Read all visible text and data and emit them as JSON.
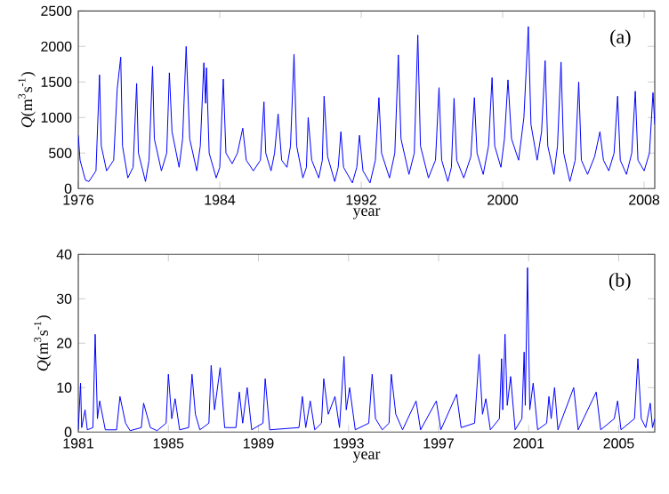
{
  "chart_data": [
    {
      "type": "line",
      "xlabel": "year",
      "ylabel": "*Q*(m$^{3}$s$^{-1}$)",
      "annotations": [
        "(a)"
      ],
      "color": "#0000ff",
      "marker": "none",
      "xlim": [
        1976,
        2008.6
      ],
      "xticks": [
        1976,
        1984,
        1992,
        2000,
        2008
      ],
      "ylim": [
        0,
        2500
      ],
      "yticks": [
        0,
        500,
        1000,
        1500,
        2000,
        2500
      ],
      "x": [
        1976.0,
        1976.1,
        1976.4,
        1976.6,
        1977.0,
        1977.2,
        1977.3,
        1977.6,
        1978.0,
        1978.2,
        1978.4,
        1978.5,
        1978.8,
        1979.1,
        1979.3,
        1979.4,
        1979.8,
        1980.0,
        1980.2,
        1980.3,
        1980.7,
        1981.0,
        1981.15,
        1981.3,
        1981.7,
        1981.9,
        1982.1,
        1982.3,
        1982.7,
        1982.9,
        1983.1,
        1983.2,
        1983.25,
        1983.4,
        1983.8,
        1984.0,
        1984.2,
        1984.35,
        1984.7,
        1985.0,
        1985.3,
        1985.5,
        1985.9,
        1986.3,
        1986.5,
        1986.6,
        1986.9,
        1987.1,
        1987.3,
        1987.5,
        1987.8,
        1988.0,
        1988.2,
        1988.35,
        1988.7,
        1988.9,
        1989.0,
        1989.2,
        1989.6,
        1989.8,
        1989.9,
        1990.1,
        1990.5,
        1990.7,
        1990.85,
        1991.0,
        1991.5,
        1991.75,
        1991.9,
        1992.1,
        1992.5,
        1992.8,
        1993.0,
        1993.15,
        1993.6,
        1993.9,
        1994.1,
        1994.25,
        1994.7,
        1995.0,
        1995.2,
        1995.35,
        1995.8,
        1996.2,
        1996.4,
        1996.55,
        1996.9,
        1997.1,
        1997.25,
        1997.4,
        1997.8,
        1998.2,
        1998.4,
        1998.55,
        1998.9,
        1999.2,
        1999.4,
        1999.55,
        1999.9,
        2000.1,
        2000.3,
        2000.5,
        2000.9,
        2001.2,
        2001.45,
        2001.6,
        2001.95,
        2002.2,
        2002.4,
        2002.55,
        2002.9,
        2003.1,
        2003.3,
        2003.45,
        2003.8,
        2004.1,
        2004.3,
        2004.45,
        2004.8,
        2005.2,
        2005.5,
        2005.7,
        2006.0,
        2006.3,
        2006.5,
        2006.65,
        2007.0,
        2007.3,
        2007.5,
        2007.65,
        2008.0,
        2008.3,
        2008.5,
        2008.6
      ],
      "values": [
        750,
        400,
        120,
        100,
        250,
        1600,
        600,
        250,
        400,
        1400,
        1850,
        600,
        150,
        300,
        1480,
        500,
        100,
        400,
        1720,
        700,
        250,
        500,
        1630,
        800,
        300,
        700,
        2000,
        700,
        250,
        600,
        1770,
        1200,
        1700,
        500,
        150,
        300,
        1540,
        500,
        350,
        500,
        850,
        400,
        250,
        400,
        1220,
        500,
        250,
        500,
        1050,
        400,
        300,
        600,
        1890,
        600,
        150,
        300,
        1000,
        400,
        150,
        400,
        1300,
        450,
        100,
        300,
        800,
        300,
        80,
        300,
        750,
        250,
        80,
        400,
        1280,
        500,
        150,
        500,
        1880,
        700,
        200,
        500,
        2160,
        600,
        150,
        400,
        1420,
        400,
        100,
        300,
        1270,
        400,
        150,
        450,
        1280,
        500,
        200,
        600,
        1560,
        600,
        300,
        700,
        1530,
        700,
        400,
        1000,
        2280,
        900,
        400,
        800,
        1800,
        600,
        200,
        600,
        1780,
        500,
        100,
        400,
        1500,
        400,
        200,
        450,
        800,
        400,
        250,
        500,
        1300,
        400,
        200,
        500,
        1370,
        400,
        250,
        500,
        1350,
        900
      ]
    },
    {
      "type": "line",
      "xlabel": "year",
      "ylabel": "*Q*(m$^{3}$s$^{-1}$)",
      "annotations": [
        "(b)"
      ],
      "color": "#0000ff",
      "marker": "none",
      "xlim": [
        1981,
        2006.6
      ],
      "xticks": [
        1981,
        1985,
        1989,
        1993,
        1997,
        2001,
        2005
      ],
      "ylim": [
        0,
        40
      ],
      "yticks": [
        0,
        10,
        20,
        30,
        40
      ],
      "x": [
        1981.0,
        1981.1,
        1981.15,
        1981.3,
        1981.4,
        1981.65,
        1981.75,
        1981.85,
        1981.95,
        1982.2,
        1982.7,
        1982.85,
        1983.1,
        1983.3,
        1983.8,
        1983.9,
        1984.2,
        1984.5,
        1984.9,
        1985.0,
        1985.15,
        1985.3,
        1985.5,
        1985.9,
        1986.05,
        1986.2,
        1986.4,
        1986.8,
        1986.9,
        1987.05,
        1987.3,
        1987.5,
        1988.0,
        1988.15,
        1988.3,
        1988.5,
        1988.7,
        1989.2,
        1989.3,
        1989.5,
        1990.8,
        1990.95,
        1991.1,
        1991.3,
        1991.5,
        1991.8,
        1991.9,
        1992.1,
        1992.4,
        1992.6,
        1992.8,
        1992.9,
        1993.05,
        1993.3,
        1993.9,
        1994.05,
        1994.2,
        1994.5,
        1994.8,
        1994.9,
        1995.1,
        1995.4,
        1996.0,
        1996.2,
        1996.9,
        1997.1,
        1997.8,
        1998.0,
        1998.6,
        1998.8,
        1998.95,
        1999.1,
        1999.3,
        1999.7,
        1999.8,
        1999.85,
        1999.95,
        2000.05,
        2000.2,
        2000.4,
        2000.7,
        2000.8,
        2000.85,
        2000.95,
        2001.05,
        2001.2,
        2001.4,
        2001.8,
        2001.9,
        2002.0,
        2002.15,
        2002.3,
        2003.0,
        2003.2,
        2004.0,
        2004.2,
        2004.8,
        2004.95,
        2005.1,
        2005.7,
        2005.85,
        2006.0,
        2006.2,
        2006.4,
        2006.5,
        2006.6
      ],
      "values": [
        0.5,
        11,
        1,
        5,
        0.5,
        1,
        22,
        3,
        7,
        0.5,
        0.5,
        8,
        2,
        0.3,
        1,
        6.5,
        1,
        0.3,
        2,
        13,
        3,
        7.5,
        0.5,
        1,
        13,
        4,
        0.5,
        2,
        15,
        5,
        14.5,
        1,
        1,
        9,
        2,
        10,
        0.5,
        2,
        12,
        0.5,
        1,
        8,
        1,
        7,
        0.5,
        2,
        12,
        4,
        8,
        1,
        17,
        5,
        10,
        0.5,
        2,
        13,
        3,
        0.5,
        2,
        13,
        4,
        0.5,
        7,
        0.5,
        7,
        0.5,
        8.5,
        1,
        2,
        17.5,
        4,
        7.5,
        0.5,
        3,
        16.5,
        5,
        22,
        6,
        12.5,
        0.5,
        3,
        18,
        6,
        37,
        5,
        11,
        0.5,
        2,
        8,
        3,
        10,
        0.5,
        10,
        0.5,
        9,
        0.5,
        3,
        7,
        0.5,
        3,
        16.5,
        3,
        1,
        6.5,
        1,
        3
      ]
    }
  ]
}
